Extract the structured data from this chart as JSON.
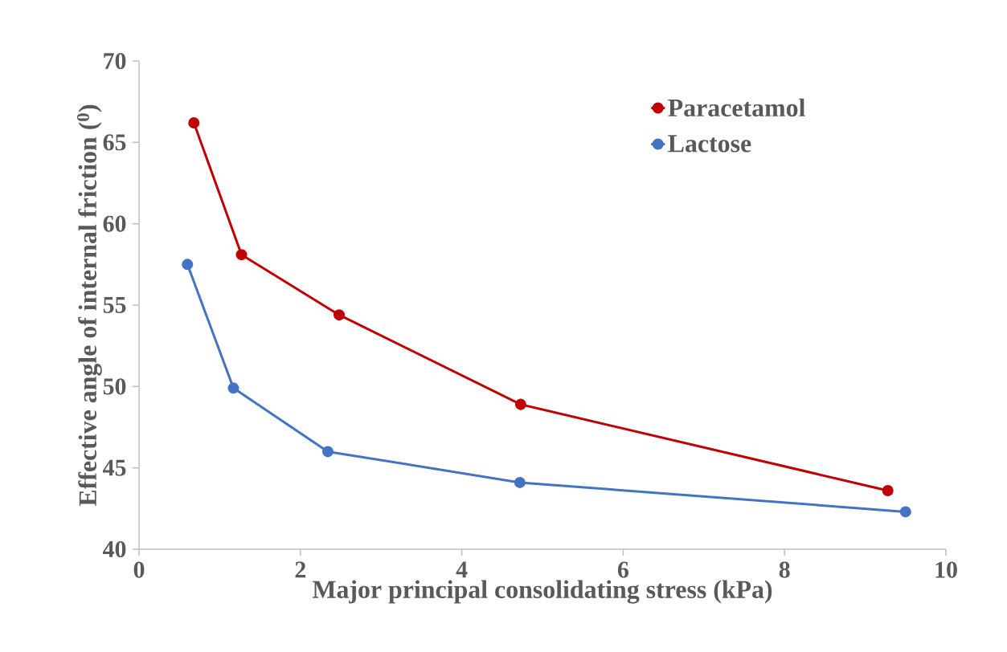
{
  "chart_data": {
    "type": "line",
    "xlabel": "Major principal consolidating stress (kPa)",
    "ylabel": "Effective angle of internal friction ($^{0}$)",
    "series": [
      {
        "name": "Paracetamol",
        "color": "#c00000",
        "x": [
          0.68,
          1.27,
          2.48,
          4.73,
          9.28
        ],
        "values": [
          66.2,
          58.1,
          54.4,
          48.9,
          43.6
        ]
      },
      {
        "name": "Lactose",
        "color": "#4472c4",
        "x": [
          0.6,
          1.17,
          2.34,
          4.72,
          9.5
        ],
        "values": [
          57.5,
          49.9,
          46.0,
          44.1,
          42.3
        ]
      }
    ],
    "xlim": [
      0,
      10
    ],
    "xticks": [
      0,
      2,
      4,
      6,
      8,
      10
    ],
    "ylim": [
      40,
      70
    ],
    "yticks": [
      40,
      45,
      50,
      55,
      60,
      65,
      70
    ],
    "grid": false,
    "legend": "top right",
    "marker": "circle",
    "line_style": "solid"
  }
}
